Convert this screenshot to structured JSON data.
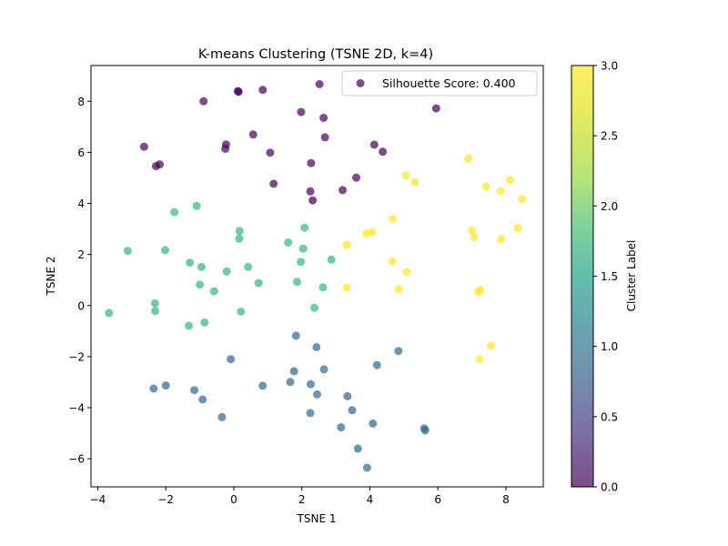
{
  "chart_data": {
    "type": "scatter",
    "title": "K-means Clustering (TSNE 2D, k=4)",
    "xlabel": "TSNE 1",
    "ylabel": "TSNE 2",
    "xlim": [
      -4.2,
      9.1
    ],
    "ylim": [
      -7.1,
      9.4
    ],
    "xticks": [
      -4,
      -2,
      0,
      2,
      4,
      6,
      8
    ],
    "yticks": [
      -6,
      -4,
      -2,
      0,
      2,
      4,
      6,
      8
    ],
    "xtick_labels": [
      "−4",
      "−2",
      "0",
      "2",
      "4",
      "6",
      "8"
    ],
    "ytick_labels": [
      "−6",
      "−4",
      "−2",
      "0",
      "2",
      "4",
      "6",
      "8"
    ],
    "grid": false,
    "legend": {
      "position": "top-right",
      "label": "Silhouette Score: 0.400"
    },
    "colorbar": {
      "label": "Cluster Label",
      "range": [
        0,
        3
      ],
      "ticks": [
        0.0,
        0.5,
        1.0,
        1.5,
        2.0,
        2.5,
        3.0
      ],
      "tick_labels": [
        "0.0",
        "0.5",
        "1.0",
        "1.5",
        "2.0",
        "2.5",
        "3.0"
      ]
    },
    "colors": {
      "0": "#440154",
      "1": "#31688e",
      "2": "#35b779",
      "3": "#fde725"
    },
    "marker_alpha": 0.7,
    "points": [
      {
        "x": 0.14,
        "y": 8.37,
        "c": 0
      },
      {
        "x": 0.85,
        "y": 8.45,
        "c": 0
      },
      {
        "x": 2.52,
        "y": 8.67,
        "c": 0
      },
      {
        "x": -0.89,
        "y": 8.0,
        "c": 0
      },
      {
        "x": 1.98,
        "y": 7.58,
        "c": 0
      },
      {
        "x": 2.64,
        "y": 7.35,
        "c": 0
      },
      {
        "x": 5.95,
        "y": 7.72,
        "c": 0
      },
      {
        "x": -2.64,
        "y": 6.22,
        "c": 0
      },
      {
        "x": -0.25,
        "y": 6.14,
        "c": 0
      },
      {
        "x": -0.23,
        "y": 6.31,
        "c": 0
      },
      {
        "x": 0.57,
        "y": 6.7,
        "c": 0
      },
      {
        "x": 1.07,
        "y": 5.99,
        "c": 0
      },
      {
        "x": 2.68,
        "y": 6.59,
        "c": 0
      },
      {
        "x": 4.13,
        "y": 6.3,
        "c": 0
      },
      {
        "x": 4.38,
        "y": 6.02,
        "c": 0
      },
      {
        "x": 2.27,
        "y": 5.58,
        "c": 0
      },
      {
        "x": -2.29,
        "y": 5.46,
        "c": 0
      },
      {
        "x": -2.18,
        "y": 5.53,
        "c": 0
      },
      {
        "x": 3.6,
        "y": 5.01,
        "c": 0
      },
      {
        "x": 1.17,
        "y": 4.77,
        "c": 0
      },
      {
        "x": 2.25,
        "y": 4.47,
        "c": 0
      },
      {
        "x": 3.2,
        "y": 4.52,
        "c": 0
      },
      {
        "x": 2.32,
        "y": 4.12,
        "c": 0
      },
      {
        "x": 0.12,
        "y": 8.4,
        "c": 0
      },
      {
        "x": -1.75,
        "y": 3.66,
        "c": 2
      },
      {
        "x": -1.09,
        "y": 3.9,
        "c": 2
      },
      {
        "x": 0.17,
        "y": 2.92,
        "c": 2
      },
      {
        "x": 0.16,
        "y": 2.62,
        "c": 2
      },
      {
        "x": 2.08,
        "y": 3.05,
        "c": 2
      },
      {
        "x": 1.6,
        "y": 2.47,
        "c": 2
      },
      {
        "x": 2.04,
        "y": 2.23,
        "c": 2
      },
      {
        "x": -3.12,
        "y": 2.14,
        "c": 2
      },
      {
        "x": -2.02,
        "y": 2.17,
        "c": 2
      },
      {
        "x": -1.29,
        "y": 1.68,
        "c": 2
      },
      {
        "x": -0.95,
        "y": 1.51,
        "c": 2
      },
      {
        "x": -0.21,
        "y": 1.34,
        "c": 2
      },
      {
        "x": 0.42,
        "y": 1.51,
        "c": 2
      },
      {
        "x": 1.97,
        "y": 1.71,
        "c": 2
      },
      {
        "x": 2.87,
        "y": 1.8,
        "c": 2
      },
      {
        "x": -1.0,
        "y": 0.82,
        "c": 2
      },
      {
        "x": -0.58,
        "y": 0.56,
        "c": 2
      },
      {
        "x": 0.73,
        "y": 0.88,
        "c": 2
      },
      {
        "x": 1.86,
        "y": 0.93,
        "c": 2
      },
      {
        "x": 2.62,
        "y": 0.71,
        "c": 2
      },
      {
        "x": -3.67,
        "y": -0.29,
        "c": 2
      },
      {
        "x": -2.32,
        "y": 0.09,
        "c": 2
      },
      {
        "x": -2.31,
        "y": -0.21,
        "c": 2
      },
      {
        "x": 0.21,
        "y": -0.24,
        "c": 2
      },
      {
        "x": 2.37,
        "y": -0.09,
        "c": 2
      },
      {
        "x": -1.32,
        "y": -0.79,
        "c": 2
      },
      {
        "x": -0.86,
        "y": -0.66,
        "c": 2
      },
      {
        "x": 6.9,
        "y": 5.75,
        "c": 3
      },
      {
        "x": 5.06,
        "y": 5.09,
        "c": 3
      },
      {
        "x": 5.33,
        "y": 4.83,
        "c": 3
      },
      {
        "x": 8.12,
        "y": 4.92,
        "c": 3
      },
      {
        "x": 7.42,
        "y": 4.66,
        "c": 3
      },
      {
        "x": 7.85,
        "y": 4.49,
        "c": 3
      },
      {
        "x": 8.48,
        "y": 4.18,
        "c": 3
      },
      {
        "x": 4.67,
        "y": 3.39,
        "c": 3
      },
      {
        "x": 3.9,
        "y": 2.82,
        "c": 3
      },
      {
        "x": 4.07,
        "y": 2.88,
        "c": 3
      },
      {
        "x": 7.0,
        "y": 2.95,
        "c": 3
      },
      {
        "x": 7.07,
        "y": 2.68,
        "c": 3
      },
      {
        "x": 8.36,
        "y": 3.03,
        "c": 3
      },
      {
        "x": 7.86,
        "y": 2.6,
        "c": 3
      },
      {
        "x": 3.32,
        "y": 2.38,
        "c": 3
      },
      {
        "x": 4.66,
        "y": 1.73,
        "c": 3
      },
      {
        "x": 5.09,
        "y": 1.32,
        "c": 3
      },
      {
        "x": 3.32,
        "y": 0.7,
        "c": 3
      },
      {
        "x": 4.85,
        "y": 0.64,
        "c": 3
      },
      {
        "x": 7.19,
        "y": 0.54,
        "c": 3
      },
      {
        "x": 7.24,
        "y": 0.61,
        "c": 3
      },
      {
        "x": 7.56,
        "y": -1.58,
        "c": 3
      },
      {
        "x": 7.23,
        "y": -2.1,
        "c": 3
      },
      {
        "x": 1.83,
        "y": -1.18,
        "c": 1
      },
      {
        "x": 2.43,
        "y": -1.63,
        "c": 1
      },
      {
        "x": 4.84,
        "y": -1.78,
        "c": 1
      },
      {
        "x": -0.09,
        "y": -2.1,
        "c": 1
      },
      {
        "x": 4.21,
        "y": -2.33,
        "c": 1
      },
      {
        "x": 1.77,
        "y": -2.57,
        "c": 1
      },
      {
        "x": 2.65,
        "y": -2.5,
        "c": 1
      },
      {
        "x": 1.66,
        "y": -2.99,
        "c": 1
      },
      {
        "x": 2.26,
        "y": -3.08,
        "c": 1
      },
      {
        "x": -2.36,
        "y": -3.25,
        "c": 1
      },
      {
        "x": -2.0,
        "y": -3.13,
        "c": 1
      },
      {
        "x": -1.16,
        "y": -3.31,
        "c": 1
      },
      {
        "x": 0.85,
        "y": -3.14,
        "c": 1
      },
      {
        "x": 2.45,
        "y": -3.48,
        "c": 1
      },
      {
        "x": -0.92,
        "y": -3.68,
        "c": 1
      },
      {
        "x": 3.34,
        "y": -3.55,
        "c": 1
      },
      {
        "x": 3.48,
        "y": -4.1,
        "c": 1
      },
      {
        "x": -0.35,
        "y": -4.37,
        "c": 1
      },
      {
        "x": 2.25,
        "y": -4.21,
        "c": 1
      },
      {
        "x": 3.15,
        "y": -4.77,
        "c": 1
      },
      {
        "x": 4.09,
        "y": -4.62,
        "c": 1
      },
      {
        "x": 5.6,
        "y": -4.81,
        "c": 1
      },
      {
        "x": 5.63,
        "y": -4.89,
        "c": 1
      },
      {
        "x": 3.65,
        "y": -5.6,
        "c": 1
      },
      {
        "x": 3.92,
        "y": -6.35,
        "c": 1
      }
    ]
  }
}
